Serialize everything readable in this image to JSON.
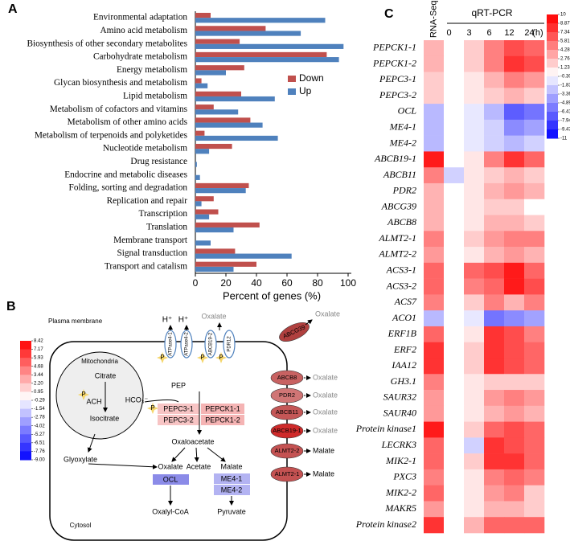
{
  "chart_data": [
    {
      "type": "bar",
      "orientation": "horizontal",
      "panel_label": "A",
      "categories": [
        "Environmental adaptation",
        "Amino acid metabolism",
        "Biosynthesis of other secondary metabolites",
        "Carbohydrate metabolism",
        "Energy metabolism",
        "Glycan biosynthesis and metabolism",
        "Lipid metabolism",
        "Metabolism of cofactors and vitamins",
        "Metabolism of other amino acids",
        "Metabolism of terpenoids and polyketides",
        "Nucleotide metabolism",
        "Drug resistance",
        "Endocrine and metabolic diseases",
        "Folding, sorting and degradation",
        "Replication and repair",
        "Transcription",
        "Translation",
        "Membrane transport",
        "Signal transduction",
        "Transport and catalism"
      ],
      "series": [
        {
          "name": "Down",
          "color": "#c0504d",
          "values": [
            10,
            46,
            29,
            86,
            32,
            4,
            30,
            12,
            36,
            6,
            24,
            0,
            0,
            35,
            12,
            15,
            42,
            0,
            26,
            40
          ]
        },
        {
          "name": "Up",
          "color": "#4f81bd",
          "values": [
            85,
            69,
            97,
            94,
            20,
            8,
            52,
            28,
            44,
            54,
            9,
            1,
            3,
            33,
            4,
            9,
            25,
            10,
            63,
            25
          ]
        }
      ],
      "xlim": [
        0,
        100
      ],
      "xticks": [
        0,
        20,
        40,
        60,
        80,
        100
      ],
      "xlabel": "Percent of genes (%)",
      "legend": "right"
    },
    {
      "type": "heatmap",
      "panel_label": "C",
      "rows": [
        "PEPCK1-1",
        "PEPCK1-2",
        "PEPC3-1",
        "PEPC3-2",
        "OCL",
        "ME4-1",
        "ME4-2",
        "ABCB19-1",
        "ABCB11",
        "PDR2",
        "ABCG39",
        "ABCB8",
        "ALMT2-1",
        "ALMT2-2",
        "ACS3-1",
        "ACS3-2",
        "ACS7",
        "ACO1",
        "ERF1B",
        "ERF2",
        "IAA12",
        "GH3.1",
        "SAUR32",
        "SAUR40",
        "Protein kinase1",
        "LECRK3",
        "MIK2-1",
        "PXC3",
        "MIK2-2",
        "MAKR5",
        "Protein kinase2"
      ],
      "columns": [
        "RNA-Seq",
        "0",
        "3",
        "6",
        "12",
        "24"
      ],
      "column_group": "qRT-PCR",
      "column_unit": "(h)",
      "values": [
        [
          3,
          0,
          2,
          5,
          7,
          6
        ],
        [
          3,
          0,
          2,
          5,
          8,
          7
        ],
        [
          2,
          0,
          1,
          3,
          5,
          4
        ],
        [
          2,
          0,
          1,
          2,
          3,
          2
        ],
        [
          -3,
          0,
          -1,
          -3,
          -7,
          -6
        ],
        [
          -3,
          0,
          -1,
          -2,
          -5,
          -4
        ],
        [
          -3,
          0,
          -1,
          -2,
          -3,
          -2
        ],
        [
          9,
          0,
          1,
          5,
          8,
          6
        ],
        [
          5,
          -2,
          1,
          2,
          3,
          2
        ],
        [
          3,
          0,
          1,
          3,
          4,
          3
        ],
        [
          3,
          0,
          1,
          2,
          2,
          0
        ],
        [
          3,
          0,
          1,
          3,
          3,
          2
        ],
        [
          5,
          0,
          2,
          4,
          5,
          5
        ],
        [
          4,
          0,
          1,
          3,
          4,
          3
        ],
        [
          6,
          0,
          6,
          7,
          9,
          6
        ],
        [
          6,
          0,
          5,
          6,
          9,
          7
        ],
        [
          5,
          0,
          2,
          5,
          3,
          5
        ],
        [
          -3,
          0,
          -1,
          -6,
          -5,
          -4
        ],
        [
          6,
          0,
          1,
          8,
          7,
          5
        ],
        [
          8,
          0,
          2,
          8,
          7,
          6
        ],
        [
          8,
          0,
          2,
          8,
          7,
          6
        ],
        [
          5,
          0,
          1,
          2,
          2,
          2
        ],
        [
          4,
          0,
          1,
          4,
          5,
          4
        ],
        [
          4,
          0,
          1,
          3,
          4,
          3
        ],
        [
          9,
          0,
          2,
          6,
          7,
          6
        ],
        [
          6,
          0,
          -2,
          8,
          7,
          6
        ],
        [
          6,
          0,
          2,
          8,
          8,
          6
        ],
        [
          5,
          0,
          1,
          5,
          6,
          5
        ],
        [
          6,
          0,
          1,
          4,
          5,
          2
        ],
        [
          4,
          0,
          1,
          3,
          3,
          2
        ],
        [
          8,
          0,
          3,
          6,
          6,
          6
        ]
      ],
      "zlim": [
        -11,
        10
      ],
      "colors": {
        "low": "#0000ff",
        "mid": "#ffffff",
        "high": "#ff0000"
      },
      "colorbar_ticks": [
        10,
        8.87,
        7.34,
        5.81,
        4.28,
        2.76,
        1.23,
        {
          "value": -0.3,
          "label": "-0.30"
        },
        -1.83,
        -3.36,
        -4.89,
        -6.41,
        -7.94,
        -9.47,
        -11
      ]
    }
  ],
  "diagram": {
    "panel_label": "B",
    "plasma_membrane": "Plasma membrane",
    "cytosol": "Cytosol",
    "mitochondria": "Mitochondria",
    "citrate": "Citrate",
    "ach": "ACH",
    "isocitrate": "Isocitrate",
    "glyoxylate": "Glyoxylate",
    "phospho": "P",
    "pep": "PEP",
    "hco3": "HCO₃⁻",
    "pepc3_1": "PEPC3-1",
    "pepc3_2": "PEPC3-2",
    "pepck1_1": "PEPCK1-1",
    "pepck1_2": "PEPCK1-2",
    "oxaloacetate": "Oxaloacetate",
    "oxalate": "Oxalate",
    "acetate": "Acetate",
    "malate": "Malate",
    "ocl": "OCL",
    "me4_1": "ME4-1",
    "me4_2": "ME4-2",
    "oxalyl_coa": "Oxalyl-CoA",
    "pyruvate": "Pyruvate",
    "proton": "H⁺",
    "top_transporters": [
      "ATPase4-1",
      "ATPase4-2",
      "ABCB19-2",
      "PDR12"
    ],
    "top_export": "Oxalate",
    "membrane_transporters": [
      {
        "name": "ABCG39",
        "substrate": "Oxalate"
      },
      {
        "name": "ABCB8",
        "substrate": "Oxalate"
      },
      {
        "name": "PDR2",
        "substrate": "Oxalate"
      },
      {
        "name": "ABCB11",
        "substrate": "Oxalate"
      },
      {
        "name": "ABCB19-1",
        "substrate": "Oxalate"
      },
      {
        "name": "ALMT2-2",
        "substrate": "Malate"
      },
      {
        "name": "ALMT2-1",
        "substrate": "Malate"
      }
    ],
    "colorbar": {
      "colors": {
        "low": "#0000ff",
        "mid": "#ffffff",
        "high": "#ff0000"
      },
      "ticks": [
        8.42,
        7.17,
        5.93,
        4.68,
        3.44,
        {
          "value": 2.2,
          "label": "2.20"
        },
        0.95,
        -0.29,
        -1.54,
        -2.78,
        -4.02,
        -5.27,
        -6.51,
        -7.76,
        {
          "value": -9,
          "label": "-9.00"
        }
      ]
    }
  }
}
